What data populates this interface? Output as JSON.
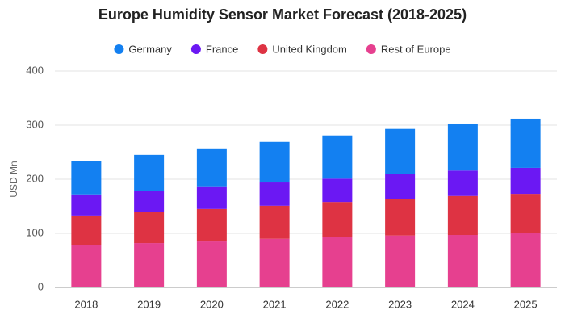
{
  "chart_data": {
    "type": "stacked_bar",
    "title": "Europe Humidity Sensor Market Forecast (2018-2025)",
    "y_label": "USD Mn",
    "categories": [
      "2018",
      "2019",
      "2020",
      "2021",
      "2022",
      "2023",
      "2024",
      "2025"
    ],
    "series": [
      {
        "name": "Germany",
        "color": "#1380f1",
        "values": [
          62,
          66,
          70,
          75,
          80,
          84,
          87,
          91
        ]
      },
      {
        "name": "France",
        "color": "#6b18f3",
        "values": [
          39,
          40,
          42,
          43,
          43,
          46,
          47,
          48
        ]
      },
      {
        "name": "United Kingdom",
        "color": "#de3343",
        "values": [
          54,
          57,
          60,
          61,
          65,
          67,
          72,
          73
        ]
      },
      {
        "name": "Rest of Europe",
        "color": "#e6408f",
        "values": [
          79,
          82,
          85,
          90,
          93,
          96,
          97,
          100
        ]
      }
    ],
    "ylim": [
      0,
      400
    ],
    "yticks": [
      0,
      100,
      200,
      300,
      400
    ],
    "grid": true,
    "legend": "top"
  }
}
